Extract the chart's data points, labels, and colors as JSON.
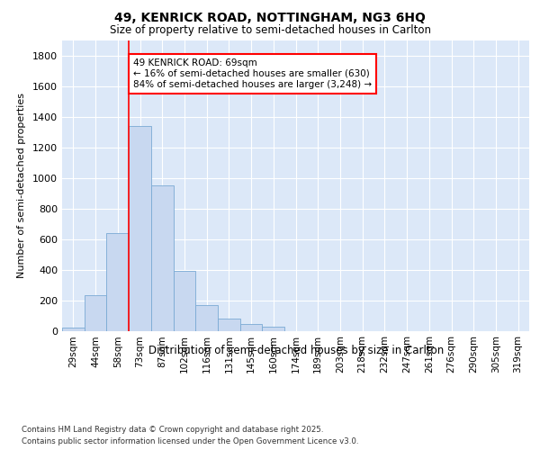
{
  "title_line1": "49, KENRICK ROAD, NOTTINGHAM, NG3 6HQ",
  "title_line2": "Size of property relative to semi-detached houses in Carlton",
  "xlabel": "Distribution of semi-detached houses by size in Carlton",
  "ylabel": "Number of semi-detached properties",
  "categories": [
    "29sqm",
    "44sqm",
    "58sqm",
    "73sqm",
    "87sqm",
    "102sqm",
    "116sqm",
    "131sqm",
    "145sqm",
    "160sqm",
    "174sqm",
    "189sqm",
    "203sqm",
    "218sqm",
    "232sqm",
    "247sqm",
    "261sqm",
    "276sqm",
    "290sqm",
    "305sqm",
    "319sqm"
  ],
  "values": [
    20,
    230,
    640,
    1340,
    950,
    390,
    165,
    80,
    45,
    25,
    0,
    0,
    0,
    0,
    0,
    0,
    0,
    0,
    0,
    0,
    0
  ],
  "bar_color": "#c8d8f0",
  "bar_edge_color": "#7aaad4",
  "vline_color": "red",
  "vline_x_index": 3,
  "annotation_text": "49 KENRICK ROAD: 69sqm\n← 16% of semi-detached houses are smaller (630)\n84% of semi-detached houses are larger (3,248) →",
  "annotation_box_color": "white",
  "annotation_box_edge_color": "red",
  "ylim": [
    0,
    1900
  ],
  "yticks": [
    0,
    200,
    400,
    600,
    800,
    1000,
    1200,
    1400,
    1600,
    1800
  ],
  "background_color": "#dce8f8",
  "footer_line1": "Contains HM Land Registry data © Crown copyright and database right 2025.",
  "footer_line2": "Contains public sector information licensed under the Open Government Licence v3.0."
}
